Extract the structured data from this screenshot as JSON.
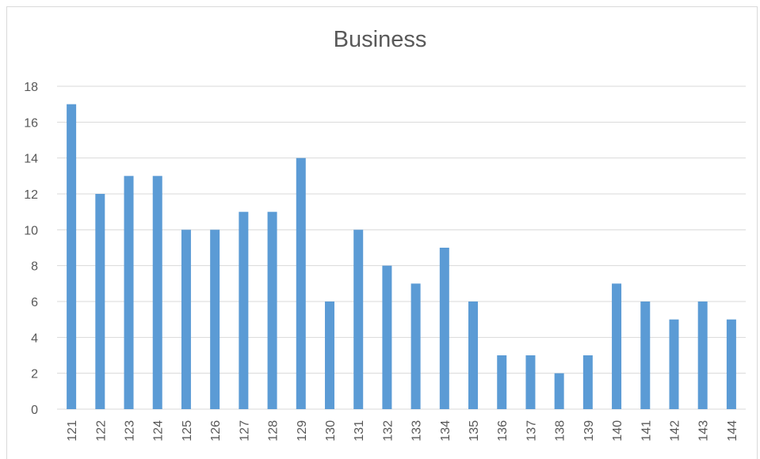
{
  "chart_data": {
    "type": "bar",
    "title": "Business",
    "xlabel": "",
    "ylabel": "",
    "categories": [
      "121",
      "122",
      "123",
      "124",
      "125",
      "126",
      "127",
      "128",
      "129",
      "130",
      "131",
      "132",
      "133",
      "134",
      "135",
      "136",
      "137",
      "138",
      "139",
      "140",
      "141",
      "142",
      "143",
      "144"
    ],
    "values": [
      17,
      12,
      13,
      13,
      10,
      10,
      11,
      11,
      14,
      6,
      10,
      8,
      7,
      9,
      6,
      3,
      3,
      2,
      3,
      7,
      6,
      5,
      6,
      5
    ],
    "ylim": [
      0,
      18
    ],
    "yticks": [
      0,
      2,
      4,
      6,
      8,
      10,
      12,
      14,
      16,
      18
    ],
    "grid": true,
    "legend": "none",
    "bar_color": "#5b9bd5",
    "grid_color": "#d9d9d9"
  }
}
